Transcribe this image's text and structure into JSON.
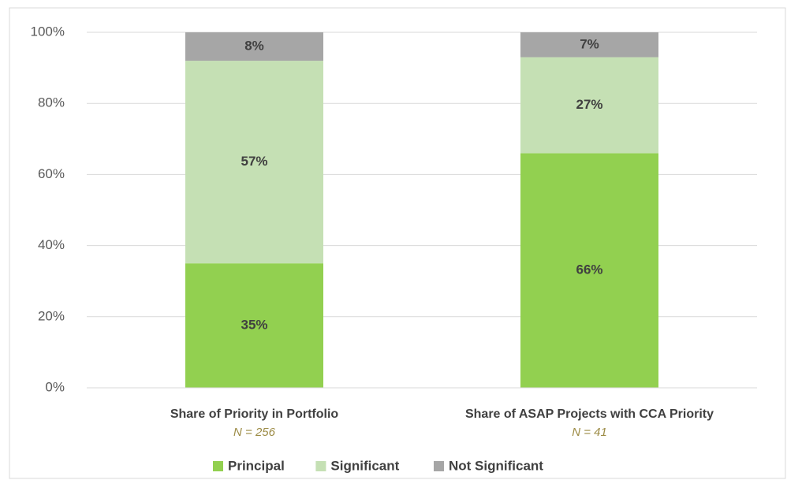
{
  "chart_data": {
    "type": "stacked_bar",
    "categories": [
      "Share of Priority in Portfolio",
      "Share of ASAP Projects with CCA Priority"
    ],
    "category_notes": [
      "N = 256",
      "N = 41"
    ],
    "series": [
      {
        "name": "Principal",
        "color": "#92d050",
        "values": [
          35,
          66
        ],
        "value_labels": [
          "35%",
          "66%"
        ]
      },
      {
        "name": "Significant",
        "color": "#c5e0b4",
        "values": [
          57,
          27
        ],
        "value_labels": [
          "57%",
          "27%"
        ]
      },
      {
        "name": "Not Significant",
        "color": "#a6a6a6",
        "values": [
          8,
          7
        ],
        "value_labels": [
          "8%",
          "7%"
        ]
      }
    ],
    "ylim": [
      0,
      100
    ],
    "yticks": [
      {
        "value": 0,
        "label": "0%"
      },
      {
        "value": 20,
        "label": "20%"
      },
      {
        "value": 40,
        "label": "40%"
      },
      {
        "value": 60,
        "label": "60%"
      },
      {
        "value": 80,
        "label": "80%"
      },
      {
        "value": 100,
        "label": "100%"
      }
    ],
    "grid": true,
    "legend": "bottom"
  }
}
